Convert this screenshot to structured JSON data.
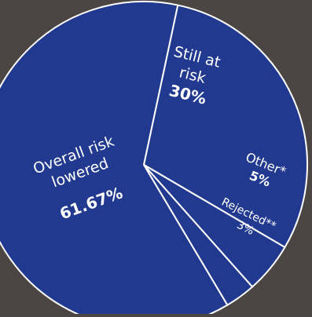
{
  "chart_data": {
    "type": "pie",
    "start_angle_deg": -78,
    "slices": [
      {
        "label": "Still at risk",
        "label_lines": [
          "Still at",
          "risk"
        ],
        "value": 30,
        "value_label": "30%"
      },
      {
        "label": "Other*",
        "label_lines": [
          "Other*"
        ],
        "value": 5,
        "value_label": "5%"
      },
      {
        "label": "Rejected**",
        "label_lines": [
          "Rejected**"
        ],
        "value": 3,
        "value_label": "3%"
      },
      {
        "label": "Overall risk lowered",
        "label_lines": [
          "Overall risk",
          "lowered"
        ],
        "value": 61.67,
        "value_label": "61.67%"
      }
    ],
    "colors": {
      "slice": "#213a8f",
      "border": "#ffffff",
      "background": "#4b4643",
      "text": "#ffffff"
    }
  }
}
